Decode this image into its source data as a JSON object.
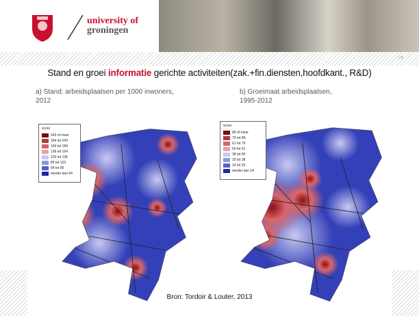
{
  "header": {
    "logo": [
      "university of",
      "groningen"
    ],
    "page_number": "| 9"
  },
  "title": [
    "Stand en groei ",
    "informatie",
    " gerichte activiteiten(zak.+fin.diensten,hoofdkant., R&D)"
  ],
  "maps": [
    {
      "title": [
        "a) Stand: arbeidsplaatsen per 1000 inwoners,",
        "2012"
      ],
      "legend_title": "score",
      "legend": [
        "243 of meer",
        "184 tot 243",
        "164 tot 184",
        "136 tot 164",
        "103 tot 136",
        "85 tot 103",
        "64 tot 85",
        "minder dan 64"
      ],
      "colors": [
        "#7a0a12",
        "#b23a3f",
        "#d0666a",
        "#eea0a0",
        "#c7c9f0",
        "#8f94de",
        "#5660c8",
        "#1e28a8"
      ]
    },
    {
      "title": [
        "b) Groeimaat arbeidsplaatsen,",
        "1995-2012"
      ],
      "legend_title": "score",
      "legend": [
        "89 of meer",
        "79 tot 89",
        "61 tot 79",
        "50 tot 61",
        "38 tot 50",
        "25 tot 38",
        "14 tot 25",
        "minder dan 14"
      ],
      "colors": [
        "#7a0a12",
        "#b23a3f",
        "#d0666a",
        "#eea0a0",
        "#c7c9f0",
        "#8f94de",
        "#5660c8",
        "#1e28a8"
      ]
    }
  ],
  "source": "Bron: Tordoir & Louter, 2013"
}
